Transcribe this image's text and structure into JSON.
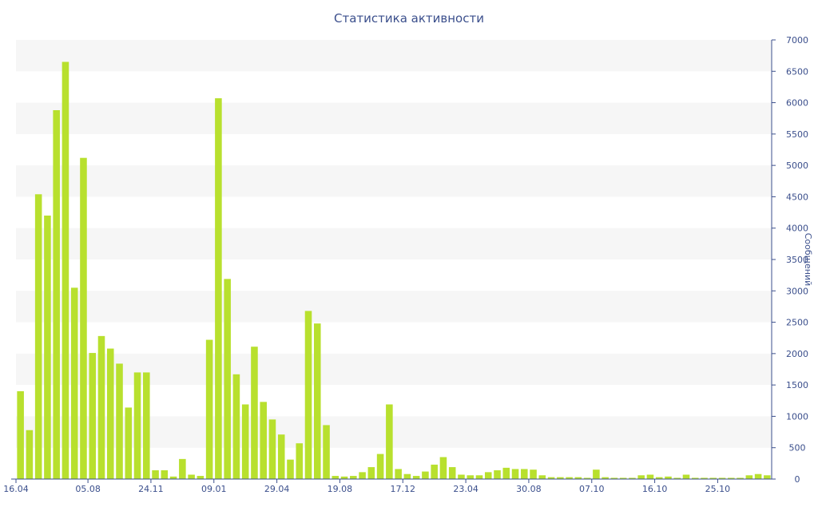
{
  "chart_data": {
    "type": "bar",
    "title": "Статистика активности",
    "ylabel": "Сообщений",
    "xlabel": "",
    "ylim": [
      0,
      7000
    ],
    "yticks": [
      0,
      500,
      1000,
      1500,
      2000,
      2500,
      3000,
      3500,
      4000,
      4500,
      5000,
      5500,
      6000,
      6500,
      7000
    ],
    "y_axis_side": "right",
    "grid": "alternating horizontal bands",
    "colors": {
      "bar": "#b8e02e",
      "band": "#f6f6f6",
      "text": "#3b4f8c",
      "axis": "#3b4f8c"
    },
    "x_tick_labels": [
      {
        "label": "16.04",
        "index": 0
      },
      {
        "label": "05.08",
        "index": 8
      },
      {
        "label": "24.11",
        "index": 15
      },
      {
        "label": "09.01",
        "index": 22
      },
      {
        "label": "29.04",
        "index": 29
      },
      {
        "label": "19.08",
        "index": 36
      },
      {
        "label": "17.12",
        "index": 43
      },
      {
        "label": "23.04",
        "index": 50
      },
      {
        "label": "30.08",
        "index": 57
      },
      {
        "label": "07.10",
        "index": 64
      },
      {
        "label": "16.10",
        "index": 71
      },
      {
        "label": "25.10",
        "index": 78
      }
    ],
    "values": [
      1400,
      780,
      4540,
      4200,
      5880,
      6650,
      3050,
      5120,
      2010,
      2280,
      2080,
      1840,
      1140,
      1700,
      1700,
      140,
      140,
      40,
      320,
      70,
      50,
      2220,
      6070,
      3190,
      1670,
      1190,
      2110,
      1230,
      950,
      710,
      310,
      570,
      2680,
      2480,
      860,
      50,
      40,
      50,
      110,
      190,
      400,
      1190,
      160,
      80,
      50,
      120,
      230,
      350,
      190,
      70,
      60,
      60,
      110,
      140,
      180,
      160,
      160,
      150,
      60,
      30,
      30,
      30,
      30,
      20,
      150,
      30,
      20,
      20,
      20,
      60,
      70,
      30,
      40,
      20,
      70,
      20,
      20,
      20,
      20,
      20,
      20,
      60,
      80,
      60
    ]
  }
}
